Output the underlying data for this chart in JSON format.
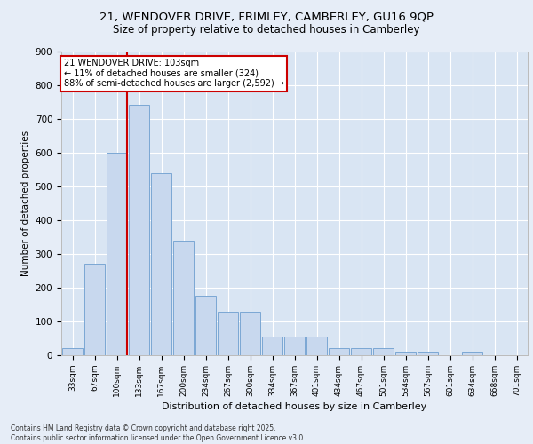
{
  "title_line1": "21, WENDOVER DRIVE, FRIMLEY, CAMBERLEY, GU16 9QP",
  "title_line2": "Size of property relative to detached houses in Camberley",
  "xlabel": "Distribution of detached houses by size in Camberley",
  "ylabel": "Number of detached properties",
  "categories": [
    "33sqm",
    "67sqm",
    "100sqm",
    "133sqm",
    "167sqm",
    "200sqm",
    "234sqm",
    "267sqm",
    "300sqm",
    "334sqm",
    "367sqm",
    "401sqm",
    "434sqm",
    "467sqm",
    "501sqm",
    "534sqm",
    "567sqm",
    "601sqm",
    "634sqm",
    "668sqm",
    "701sqm"
  ],
  "values": [
    20,
    270,
    600,
    740,
    540,
    340,
    175,
    130,
    130,
    55,
    55,
    55,
    20,
    20,
    20,
    10,
    10,
    0,
    10,
    0,
    0
  ],
  "bar_color": "#c8d8ee",
  "bar_edge_color": "#7ba7d4",
  "red_line_color": "#cc0000",
  "annotation_text": "21 WENDOVER DRIVE: 103sqm\n← 11% of detached houses are smaller (324)\n88% of semi-detached houses are larger (2,592) →",
  "annotation_box_color": "#ffffff",
  "annotation_box_edge_color": "#cc0000",
  "background_color": "#e6edf7",
  "plot_background_color": "#d9e5f3",
  "grid_color": "#ffffff",
  "footnote": "Contains HM Land Registry data © Crown copyright and database right 2025.\nContains public sector information licensed under the Open Government Licence v3.0.",
  "ylim": [
    0,
    900
  ],
  "yticks": [
    0,
    100,
    200,
    300,
    400,
    500,
    600,
    700,
    800,
    900
  ]
}
